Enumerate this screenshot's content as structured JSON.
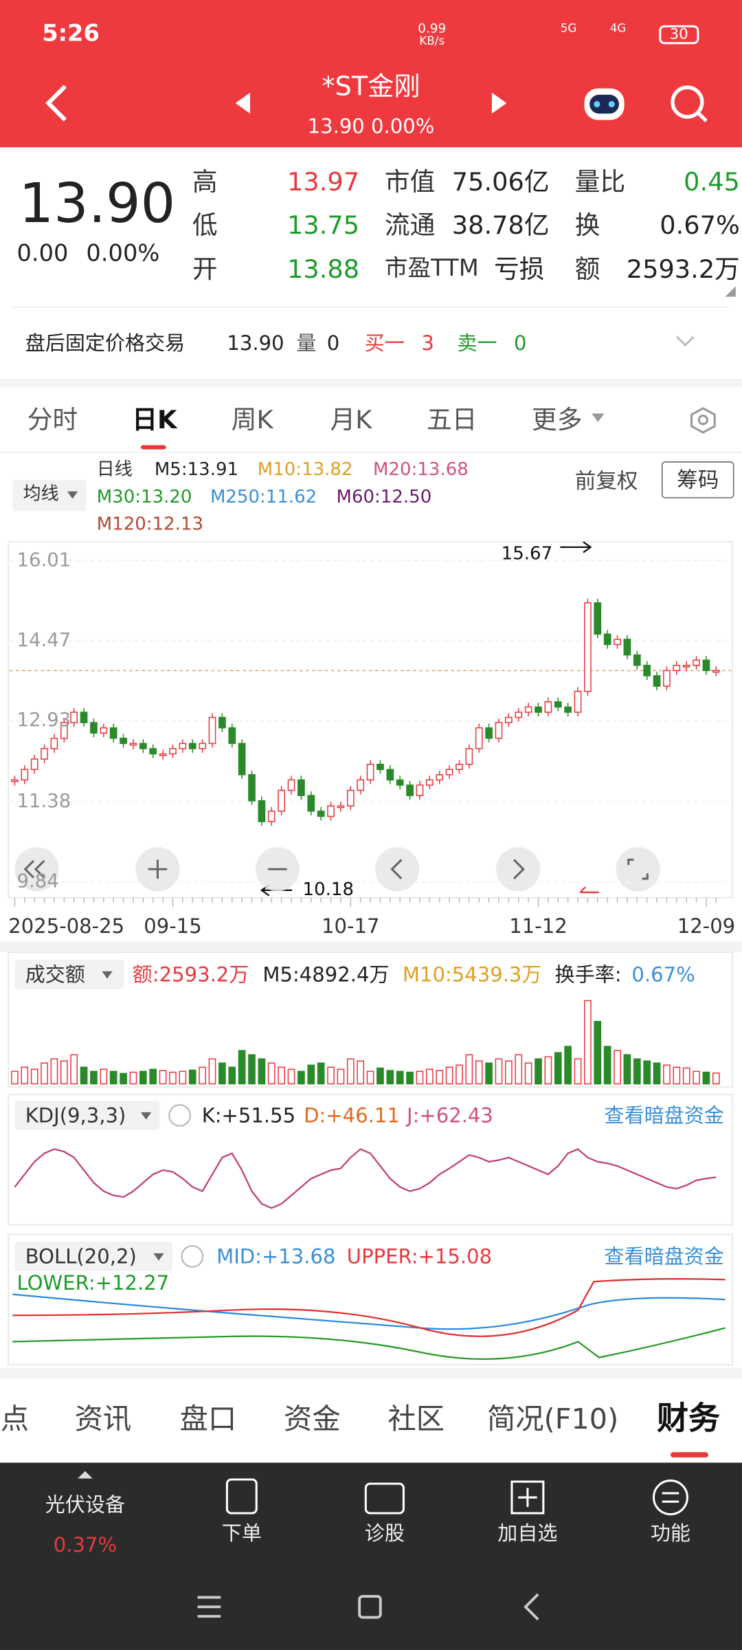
{
  "status": {
    "time": "5:26",
    "speed": "0.99",
    "speed_unit": "KB/s",
    "net1": "5G",
    "net2": "4G",
    "battery": "30"
  },
  "header": {
    "title": "*ST金刚",
    "subtitle": "13.90 0.00%"
  },
  "quote": {
    "price": "13.90",
    "change": "0.00",
    "pct": "0.00%",
    "fields": [
      [
        "高",
        "13.97"
      ],
      [
        "低",
        "13.75"
      ],
      [
        "开",
        "13.88"
      ],
      [
        "市值",
        "75.06亿"
      ],
      [
        "流通",
        "38.78亿"
      ],
      [
        "市盈TTM",
        "亏损"
      ],
      [
        "量比",
        "0.45"
      ],
      [
        "换",
        "0.67%"
      ],
      [
        "额",
        "2593.2万"
      ]
    ]
  },
  "after_hours": {
    "label": "盘后固定价格交易",
    "price": "13.90",
    "vol_label": "量",
    "vol": "0",
    "buy_label": "买一",
    "buy": "3",
    "sell_label": "卖一",
    "sell": "0"
  },
  "tabs": [
    "分时",
    "日K",
    "周K",
    "月K",
    "五日",
    "更多"
  ],
  "ma_legend": {
    "selector": "均线",
    "period": "日线",
    "m5": "M5:13.91",
    "m10": "M10:13.82",
    "m20": "M20:13.68",
    "m30": "M30:13.20",
    "m250": "M250:11.62",
    "m60": "M60:12.50",
    "m120": "M120:12.13",
    "adjust": "前复权",
    "chips": "筹码"
  },
  "chart_data": {
    "type": "candlestick",
    "categories": [
      "2025-08-25",
      null,
      null,
      null,
      null,
      null,
      null,
      null,
      null,
      null,
      null,
      null,
      null,
      null,
      null,
      null,
      "09-15",
      null,
      null,
      null,
      null,
      null,
      null,
      null,
      null,
      null,
      null,
      null,
      null,
      null,
      null,
      null,
      null,
      null,
      "10-17",
      null,
      null,
      null,
      null,
      null,
      null,
      null,
      null,
      null,
      null,
      null,
      null,
      null,
      null,
      null,
      null,
      null,
      null,
      "11-12",
      null,
      null,
      null,
      null,
      null,
      null,
      null,
      null,
      null,
      null,
      null,
      null,
      null,
      null,
      null,
      null,
      "12-09",
      null
    ],
    "close": [
      11.8,
      12.0,
      12.2,
      12.4,
      12.6,
      12.9,
      13.1,
      12.9,
      12.7,
      12.8,
      12.6,
      12.5,
      12.5,
      12.4,
      12.3,
      12.3,
      12.4,
      12.5,
      12.4,
      12.5,
      13.0,
      12.8,
      12.5,
      11.9,
      11.4,
      11.0,
      11.2,
      11.6,
      11.8,
      11.5,
      11.2,
      11.1,
      11.3,
      11.3,
      11.6,
      11.8,
      12.1,
      12.0,
      11.8,
      11.7,
      11.5,
      11.7,
      11.8,
      11.9,
      12.0,
      12.1,
      12.4,
      12.8,
      12.6,
      12.9,
      13.0,
      13.1,
      13.2,
      13.1,
      13.3,
      13.2,
      13.1,
      13.5,
      15.2,
      14.6,
      14.4,
      14.5,
      14.2,
      14.0,
      13.8,
      13.6,
      13.9,
      14.0,
      14.0,
      14.1,
      13.9,
      13.9
    ],
    "ylim": [
      9.54,
      16.37
    ],
    "yticks": [
      16.01,
      14.47,
      12.93,
      11.38,
      9.84
    ],
    "up_color": "#e8383d",
    "down_color": "#2a8a2a",
    "last_line_color": "#e0a060",
    "high_label": "15.67",
    "low_label": "10.18"
  },
  "volume_chart": {
    "type": "bar",
    "title": "成交额",
    "amount": "额:2593.2万",
    "m5": "M5:4892.4万",
    "m10": "M10:5439.3万",
    "turnover_label": "换手率:",
    "turnover": "0.67%",
    "values": [
      3000,
      4000,
      3500,
      5000,
      6000,
      5500,
      7000,
      4000,
      3000,
      3500,
      3000,
      2500,
      2800,
      3000,
      3500,
      3200,
      2800,
      3000,
      3300,
      4000,
      6000,
      5000,
      4000,
      8000,
      7000,
      6000,
      5000,
      4000,
      3500,
      3000,
      4500,
      5000,
      4000,
      3500,
      6000,
      5500,
      3000,
      3800,
      3200,
      3000,
      2800,
      3000,
      3500,
      3200,
      4000,
      4500,
      7000,
      5500,
      5000,
      6000,
      5500,
      7000,
      5000,
      6000,
      6500,
      7500,
      9000,
      6000,
      20000,
      15000,
      9000,
      8000,
      7000,
      6000,
      5500,
      5000,
      4500,
      4000,
      3800,
      3000,
      2800,
      2593.2
    ],
    "ylim": [
      0,
      22000
    ]
  },
  "kdj_chart": {
    "type": "line",
    "title": "KDJ(9,3,3)",
    "k": "K:+51.55",
    "d": "D:+46.11",
    "j": "J:+62.43",
    "link": "查看暗盘资金",
    "color": "#c0407a",
    "values": [
      40,
      55,
      70,
      80,
      85,
      82,
      75,
      60,
      45,
      35,
      30,
      28,
      35,
      45,
      55,
      60,
      58,
      50,
      40,
      35,
      55,
      75,
      80,
      60,
      35,
      20,
      15,
      20,
      30,
      40,
      50,
      55,
      60,
      62,
      75,
      85,
      80,
      65,
      50,
      40,
      35,
      38,
      45,
      55,
      62,
      70,
      78,
      75,
      70,
      72,
      75,
      70,
      65,
      60,
      55,
      65,
      80,
      85,
      75,
      70,
      68,
      65,
      60,
      55,
      50,
      45,
      40,
      38,
      42,
      48,
      50,
      51.55
    ],
    "ylim": [
      0,
      100
    ]
  },
  "boll": {
    "title": "BOLL(20,2)",
    "mid": "MID:+13.68",
    "upper": "UPPER:+15.08",
    "lower": "LOWER:+12.27",
    "link": "查看暗盘资金"
  },
  "bottom_tabs": [
    "点",
    "资讯",
    "盘口",
    "资金",
    "社区",
    "简况(F10)",
    "财务"
  ],
  "toolbar": {
    "sector": "光伏设备",
    "sector_pct": "0.37%",
    "items": [
      "下单",
      "诊股",
      "加自选",
      "功能"
    ]
  }
}
